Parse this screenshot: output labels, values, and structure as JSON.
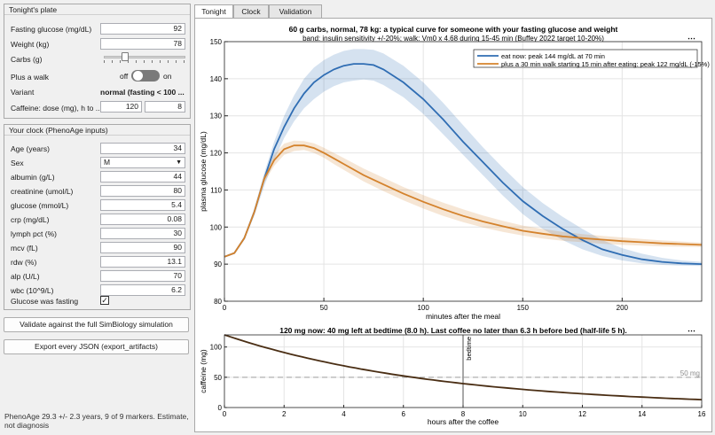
{
  "plate": {
    "title": "Tonight's plate",
    "fasting_label": "Fasting glucose (mg/dL)",
    "fasting_value": "92",
    "weight_label": "Weight (kg)",
    "weight_value": "78",
    "carbs_label": "Carbs (g)",
    "carbs_slider_fraction": 0.25,
    "walk_label": "Plus a walk",
    "walk_off": "off",
    "walk_on": "on",
    "variant_label": "Variant",
    "variant_value": "normal  (fasting < 100 ...",
    "caffeine_label": "Caffeine: dose (mg), h to ...",
    "caffeine_dose": "120",
    "caffeine_hours": "8"
  },
  "clock": {
    "title": "Your clock (PhenoAge inputs)",
    "fields": [
      {
        "label": "Age (years)",
        "value": "34"
      },
      {
        "label": "Sex",
        "value": "M",
        "select": true
      },
      {
        "label": "albumin (g/L)",
        "value": "44"
      },
      {
        "label": "creatinine (umol/L)",
        "value": "80"
      },
      {
        "label": "glucose (mmol/L)",
        "value": "5.4"
      },
      {
        "label": "crp (mg/dL)",
        "value": "0.08"
      },
      {
        "label": "lymph pct (%)",
        "value": "30"
      },
      {
        "label": "mcv (fL)",
        "value": "90"
      },
      {
        "label": "rdw (%)",
        "value": "13.1"
      },
      {
        "label": "alp (U/L)",
        "value": "70"
      },
      {
        "label": "wbc (10^9/L)",
        "value": "6.2"
      }
    ],
    "fasting_check_label": "Glucose was fasting",
    "fasting_checked": true
  },
  "buttons": {
    "validate": "Validate against the full SimBiology simulation",
    "export": "Export every JSON (export_artifacts)"
  },
  "status": "PhenoAge 29.3 +/- 2.3 years, 9 of 9 markers. Estimate, not diagnosis",
  "tabs": [
    "Tonight",
    "Clock",
    "Validation"
  ],
  "active_tab": 0,
  "chart_data": [
    {
      "type": "line",
      "title": "60 g carbs, normal, 78 kg: a typical curve for someone with your fasting glucose and weight",
      "subtitle": "band: insulin sensitivity +/-20%; walk: Vm0 x 4.68 during 15-45 min (Buffey 2022 target 10-20%)",
      "xlabel": "minutes after the meal",
      "ylabel": "plasma glucose (mg/dL)",
      "xlim": [
        0,
        240
      ],
      "ylim": [
        80,
        150
      ],
      "xticks": [
        0,
        50,
        100,
        150,
        200
      ],
      "yticks": [
        80,
        90,
        100,
        110,
        120,
        130,
        140,
        150
      ],
      "grid": true,
      "legend": "top-right",
      "series": [
        {
          "name": "eat now: peak 144 mg/dL at 70 min",
          "color": "#2f6db3",
          "x": [
            0,
            5,
            10,
            15,
            20,
            25,
            30,
            35,
            40,
            45,
            50,
            55,
            60,
            65,
            70,
            75,
            80,
            90,
            100,
            110,
            120,
            130,
            140,
            150,
            160,
            170,
            180,
            190,
            200,
            210,
            220,
            230,
            240
          ],
          "y": [
            92,
            93,
            97,
            104,
            113,
            121,
            127,
            132,
            136,
            139,
            141,
            142.5,
            143.5,
            144,
            144,
            143.7,
            142.5,
            139,
            134.5,
            129,
            123,
            117.5,
            112,
            107,
            103,
            99.5,
            96.5,
            94,
            92.5,
            91.3,
            90.6,
            90.2,
            90
          ],
          "band_low": [
            92,
            93,
            96.5,
            103,
            111,
            118,
            124,
            128.5,
            132,
            134.5,
            136.5,
            138,
            139,
            139.5,
            139.8,
            139.5,
            138.3,
            135,
            130.5,
            125,
            119.5,
            114,
            108.5,
            103.5,
            99.5,
            96.5,
            94,
            92.2,
            91,
            90.2,
            89.8,
            89.6,
            89.5
          ],
          "band_high": [
            92,
            93,
            97.5,
            105,
            114.5,
            123,
            130,
            135.5,
            140,
            143,
            145,
            146.5,
            147.5,
            148,
            148,
            147.8,
            146.8,
            143.5,
            139,
            133.5,
            127.5,
            121.5,
            116,
            110.8,
            106.5,
            102.8,
            99.5,
            96.5,
            94.3,
            92.8,
            91.7,
            91,
            90.6
          ]
        },
        {
          "name": "plus a 30 min walk starting 15 min after eating: peak 122 mg/dL (-15%)",
          "color": "#d4822c",
          "x": [
            0,
            5,
            10,
            15,
            20,
            25,
            30,
            35,
            40,
            45,
            50,
            55,
            60,
            70,
            80,
            90,
            100,
            110,
            120,
            130,
            140,
            150,
            160,
            170,
            180,
            190,
            200,
            210,
            220,
            230,
            240
          ],
          "y": [
            92,
            93,
            97,
            104,
            113,
            118,
            121,
            122,
            122,
            121.3,
            120,
            118.5,
            117,
            114,
            111.5,
            109,
            106.8,
            104.8,
            103,
            101.5,
            100.2,
            99,
            98.2,
            97.5,
            97,
            96.6,
            96.2,
            95.9,
            95.6,
            95.4,
            95.2
          ],
          "band_low": [
            92,
            93,
            96.8,
            103.5,
            112,
            116.5,
            119.5,
            120.5,
            120.8,
            120,
            118.7,
            117,
            115.4,
            112.3,
            109.7,
            107.2,
            105,
            103,
            101.3,
            99.9,
            98.7,
            97.7,
            96.9,
            96.3,
            95.9,
            95.5,
            95.2,
            95,
            94.8,
            94.7,
            94.6
          ],
          "band_high": [
            92,
            93,
            97.2,
            104.5,
            114,
            119.5,
            122.5,
            123.3,
            123.2,
            122.6,
            121.4,
            120,
            118.6,
            115.8,
            113.3,
            110.8,
            108.6,
            106.6,
            104.8,
            103.1,
            101.7,
            100.4,
            99.5,
            98.7,
            98.1,
            97.6,
            97.2,
            96.8,
            96.4,
            96.1,
            95.8
          ]
        }
      ]
    },
    {
      "type": "line",
      "title": "120 mg now: 40 mg left at bedtime (8.0 h). Last coffee no later than 6.3 h before bed (half-life 5 h).",
      "xlabel": "hours after the coffee",
      "ylabel": "caffeine (mg)",
      "xlim": [
        0,
        16
      ],
      "ylim": [
        0,
        120
      ],
      "xticks": [
        0,
        2,
        4,
        6,
        8,
        10,
        12,
        14,
        16
      ],
      "yticks": [
        0,
        50,
        100
      ],
      "grid": true,
      "dose": 120,
      "half_life": 5,
      "bedtime": 8,
      "bedtime_label": "bedtime",
      "threshold": 50,
      "threshold_label": "50 mg",
      "series": [
        {
          "color": "#4a2e14"
        }
      ]
    }
  ]
}
